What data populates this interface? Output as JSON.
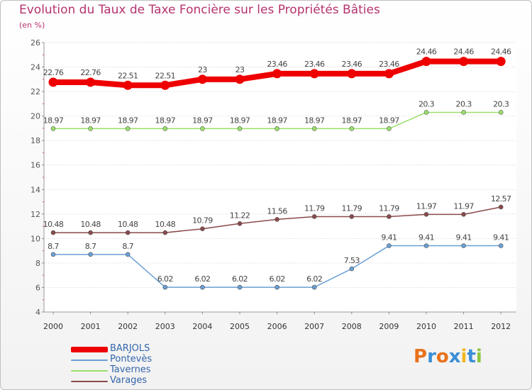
{
  "header": {
    "title": "Evolution du Taux de Taxe Foncière sur les Propriétés Bâties",
    "subtitle": "(en %)"
  },
  "logo": {
    "letters": [
      "P",
      "r",
      "o",
      "x",
      "i",
      "t",
      "i"
    ],
    "colors": [
      "#e8721c",
      "#3b8fd6",
      "#e8721c",
      "#3b8fd6",
      "#f0b820",
      "#3b8fd6",
      "#8cc63f"
    ]
  },
  "chart_data": {
    "type": "line",
    "title": "Evolution du Taux de Taxe Foncière sur les Propriétés Bâties",
    "ylabel": "(en %)",
    "xlabel": "",
    "x": [
      "2000",
      "2001",
      "2002",
      "2003",
      "2004",
      "2005",
      "2006",
      "2007",
      "2008",
      "2009",
      "2010",
      "2011",
      "2012"
    ],
    "ylim": [
      4,
      26
    ],
    "yticks": [
      "4",
      "6",
      "8",
      "10",
      "12",
      "14",
      "16",
      "18",
      "20",
      "22",
      "24",
      "26"
    ],
    "grid": "horizontal dotted",
    "legend_position": "bottom-left",
    "series": [
      {
        "name": "BARJOLS",
        "color": "#ee0000",
        "values": [
          22.76,
          22.76,
          22.51,
          22.51,
          23,
          23,
          23.46,
          23.46,
          23.46,
          23.46,
          24.46,
          24.46,
          24.46
        ],
        "labels": [
          "22.76",
          "22.76",
          "22.51",
          "22.51",
          "23",
          "23",
          "23.46",
          "23.46",
          "23.46",
          "23.46",
          "24.46",
          "24.46",
          "24.46"
        ]
      },
      {
        "name": "Pontevès",
        "color": "#6a9fd4",
        "values": [
          8.7,
          8.7,
          8.7,
          6.02,
          6.02,
          6.02,
          6.02,
          6.02,
          7.53,
          9.41,
          9.41,
          9.41,
          9.41
        ],
        "labels": [
          "8.7",
          "8.7",
          "8.7",
          "6.02",
          "6.02",
          "6.02",
          "6.02",
          "6.02",
          "7.53",
          "9.41",
          "9.41",
          "9.41",
          "9.41"
        ]
      },
      {
        "name": "Tavernes",
        "color": "#99e06a",
        "values": [
          18.97,
          18.97,
          18.97,
          18.97,
          18.97,
          18.97,
          18.97,
          18.97,
          18.97,
          18.97,
          20.3,
          20.3,
          20.3
        ],
        "labels": [
          "18.97",
          "18.97",
          "18.97",
          "18.97",
          "18.97",
          "18.97",
          "18.97",
          "18.97",
          "18.97",
          "18.97",
          "20.3",
          "20.3",
          "20.3"
        ]
      },
      {
        "name": "Varages",
        "color": "#8a4a4a",
        "values": [
          10.48,
          10.48,
          10.48,
          10.48,
          10.79,
          11.22,
          11.56,
          11.79,
          11.79,
          11.79,
          11.97,
          11.97,
          12.57
        ],
        "labels": [
          "10.48",
          "10.48",
          "10.48",
          "10.48",
          "10.79",
          "11.22",
          "11.56",
          "11.79",
          "11.79",
          "11.79",
          "11.97",
          "11.97",
          "12.57"
        ]
      }
    ]
  }
}
